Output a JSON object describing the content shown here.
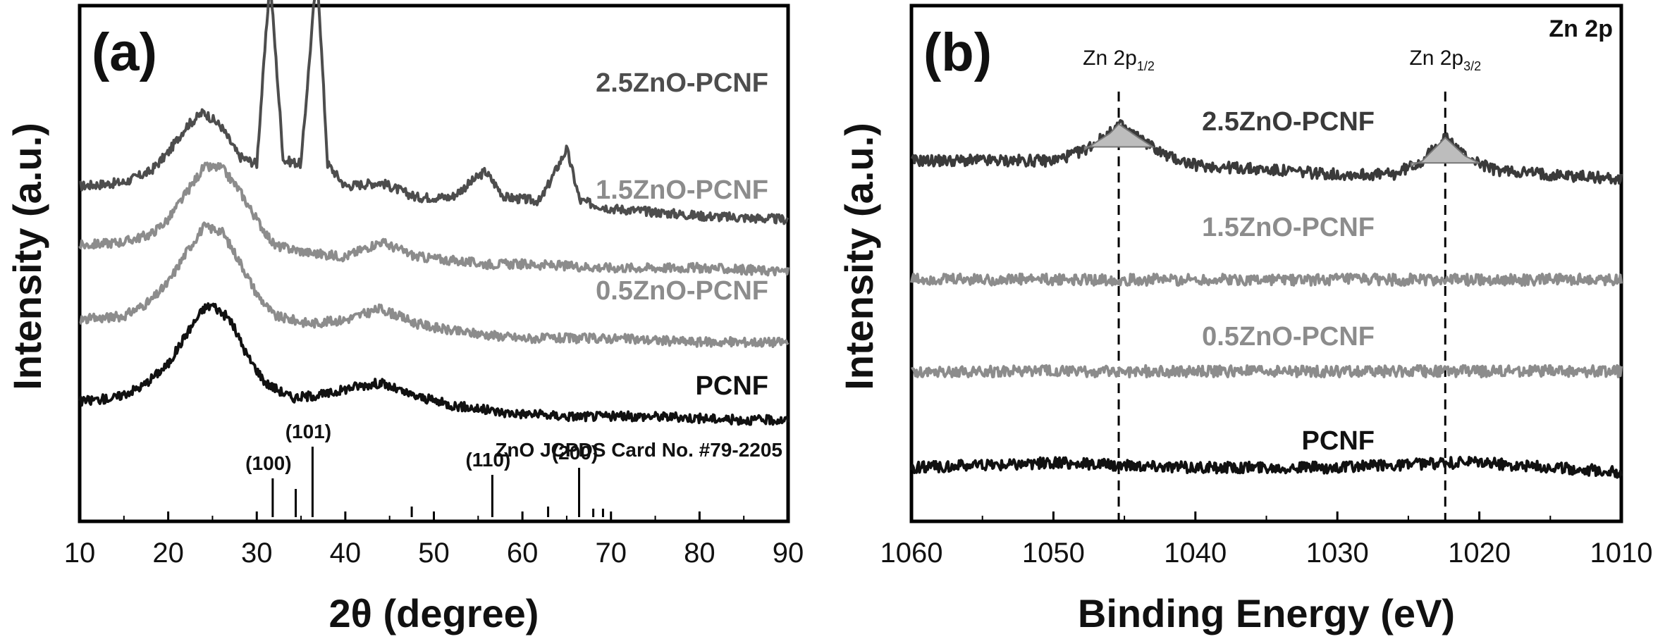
{
  "chart_data": [
    {
      "type": "line",
      "panel_label": "(a)",
      "xlabel": "2θ (degree)",
      "ylabel": "Intensity (a.u.)",
      "xlim": [
        10,
        90
      ],
      "xticks": [
        10,
        20,
        30,
        40,
        50,
        60,
        70,
        80,
        90
      ],
      "grid": false,
      "series": [
        {
          "name": "2.5ZnO-PCNF",
          "color": "#4d4d4d",
          "x": [
            10,
            15,
            18,
            20,
            22,
            24,
            26,
            28,
            30,
            31.5,
            33,
            35,
            36.8,
            38,
            40,
            44,
            48,
            52,
            55.8,
            58,
            62,
            65,
            66.5,
            70,
            80,
            90
          ],
          "y": [
            0.66,
            0.67,
            0.7,
            0.75,
            0.82,
            0.86,
            0.82,
            0.74,
            0.72,
            1.22,
            0.73,
            0.72,
            1.25,
            0.72,
            0.66,
            0.67,
            0.63,
            0.63,
            0.7,
            0.63,
            0.62,
            0.76,
            0.62,
            0.6,
            0.58,
            0.57
          ]
        },
        {
          "name": "1.5ZnO-PCNF",
          "color": "#8c8c8c",
          "x": [
            10,
            15,
            18,
            20,
            22,
            24,
            26,
            28,
            30,
            32,
            36,
            40,
            44,
            48,
            52,
            56,
            60,
            70,
            80,
            90
          ],
          "y": [
            0.5,
            0.51,
            0.53,
            0.57,
            0.64,
            0.71,
            0.71,
            0.65,
            0.57,
            0.5,
            0.48,
            0.47,
            0.51,
            0.47,
            0.46,
            0.45,
            0.45,
            0.44,
            0.44,
            0.43
          ]
        },
        {
          "name": "0.5ZnO-PCNF",
          "color": "#8c8c8c",
          "x": [
            10,
            15,
            18,
            20,
            22,
            24,
            26,
            28,
            30,
            32,
            36,
            40,
            44,
            48,
            52,
            56,
            60,
            70,
            80,
            90
          ],
          "y": [
            0.3,
            0.31,
            0.35,
            0.4,
            0.48,
            0.55,
            0.54,
            0.46,
            0.37,
            0.31,
            0.29,
            0.3,
            0.33,
            0.29,
            0.27,
            0.26,
            0.25,
            0.25,
            0.24,
            0.24
          ]
        },
        {
          "name": "PCNF",
          "color": "#111111",
          "x": [
            10,
            14,
            17,
            20,
            22,
            24,
            25,
            27,
            29,
            31,
            34,
            38,
            41,
            44,
            47,
            52,
            58,
            65,
            75,
            85,
            90
          ],
          "y": [
            0.08,
            0.09,
            0.12,
            0.18,
            0.26,
            0.33,
            0.34,
            0.3,
            0.2,
            0.13,
            0.09,
            0.1,
            0.12,
            0.13,
            0.1,
            0.07,
            0.05,
            0.04,
            0.04,
            0.03,
            0.03
          ]
        }
      ],
      "reference": {
        "label": "ZnO JCPDS Card No. #79-2205",
        "peaks": [
          {
            "x": 31.8,
            "height": 0.55,
            "hkl": "(100)"
          },
          {
            "x": 34.4,
            "height": 0.4,
            "hkl": ""
          },
          {
            "x": 36.3,
            "height": 1.0,
            "hkl": "(101)"
          },
          {
            "x": 47.5,
            "height": 0.15,
            "hkl": ""
          },
          {
            "x": 56.6,
            "height": 0.6,
            "hkl": "(110)"
          },
          {
            "x": 62.9,
            "height": 0.15,
            "hkl": ""
          },
          {
            "x": 66.4,
            "height": 0.7,
            "hkl": "(200)"
          },
          {
            "x": 68.0,
            "height": 0.12,
            "hkl": ""
          },
          {
            "x": 69.1,
            "height": 0.12,
            "hkl": ""
          }
        ]
      }
    },
    {
      "type": "line",
      "panel_label": "(b)",
      "corner_label": "Zn 2p",
      "xlabel": "Binding Energy (eV)",
      "ylabel": "Intensity (a.u.)",
      "xlim": [
        1060,
        1010
      ],
      "xticks": [
        1060,
        1050,
        1040,
        1030,
        1020,
        1010
      ],
      "reversed_x": true,
      "grid": false,
      "annotations": [
        {
          "text": "Zn 2p",
          "sub": "1/2",
          "x": 1045.4
        },
        {
          "text": "Zn 2p",
          "sub": "3/2",
          "x": 1022.4
        }
      ],
      "series": [
        {
          "name": "2.5ZnO-PCNF",
          "color": "#3a3a3a",
          "x": [
            1060,
            1055,
            1050,
            1048,
            1046,
            1045.4,
            1044,
            1042,
            1040,
            1035,
            1030,
            1026,
            1024,
            1022.4,
            1021,
            1019,
            1015,
            1010
          ],
          "y": [
            0.78,
            0.78,
            0.78,
            0.8,
            0.84,
            0.86,
            0.83,
            0.79,
            0.77,
            0.76,
            0.75,
            0.75,
            0.78,
            0.83,
            0.79,
            0.76,
            0.75,
            0.74
          ]
        },
        {
          "name": "1.5ZnO-PCNF",
          "color": "#8c8c8c",
          "x": [
            1060,
            1050,
            1040,
            1030,
            1020,
            1010
          ],
          "y": [
            0.52,
            0.52,
            0.52,
            0.52,
            0.52,
            0.52
          ]
        },
        {
          "name": "0.5ZnO-PCNF",
          "color": "#8c8c8c",
          "x": [
            1060,
            1050,
            1040,
            1030,
            1020,
            1010
          ],
          "y": [
            0.32,
            0.32,
            0.32,
            0.32,
            0.32,
            0.32
          ]
        },
        {
          "name": "PCNF",
          "color": "#111111",
          "x": [
            1060,
            1050,
            1040,
            1030,
            1022,
            1020,
            1010
          ],
          "y": [
            0.11,
            0.12,
            0.11,
            0.11,
            0.12,
            0.12,
            0.1
          ]
        }
      ]
    }
  ]
}
